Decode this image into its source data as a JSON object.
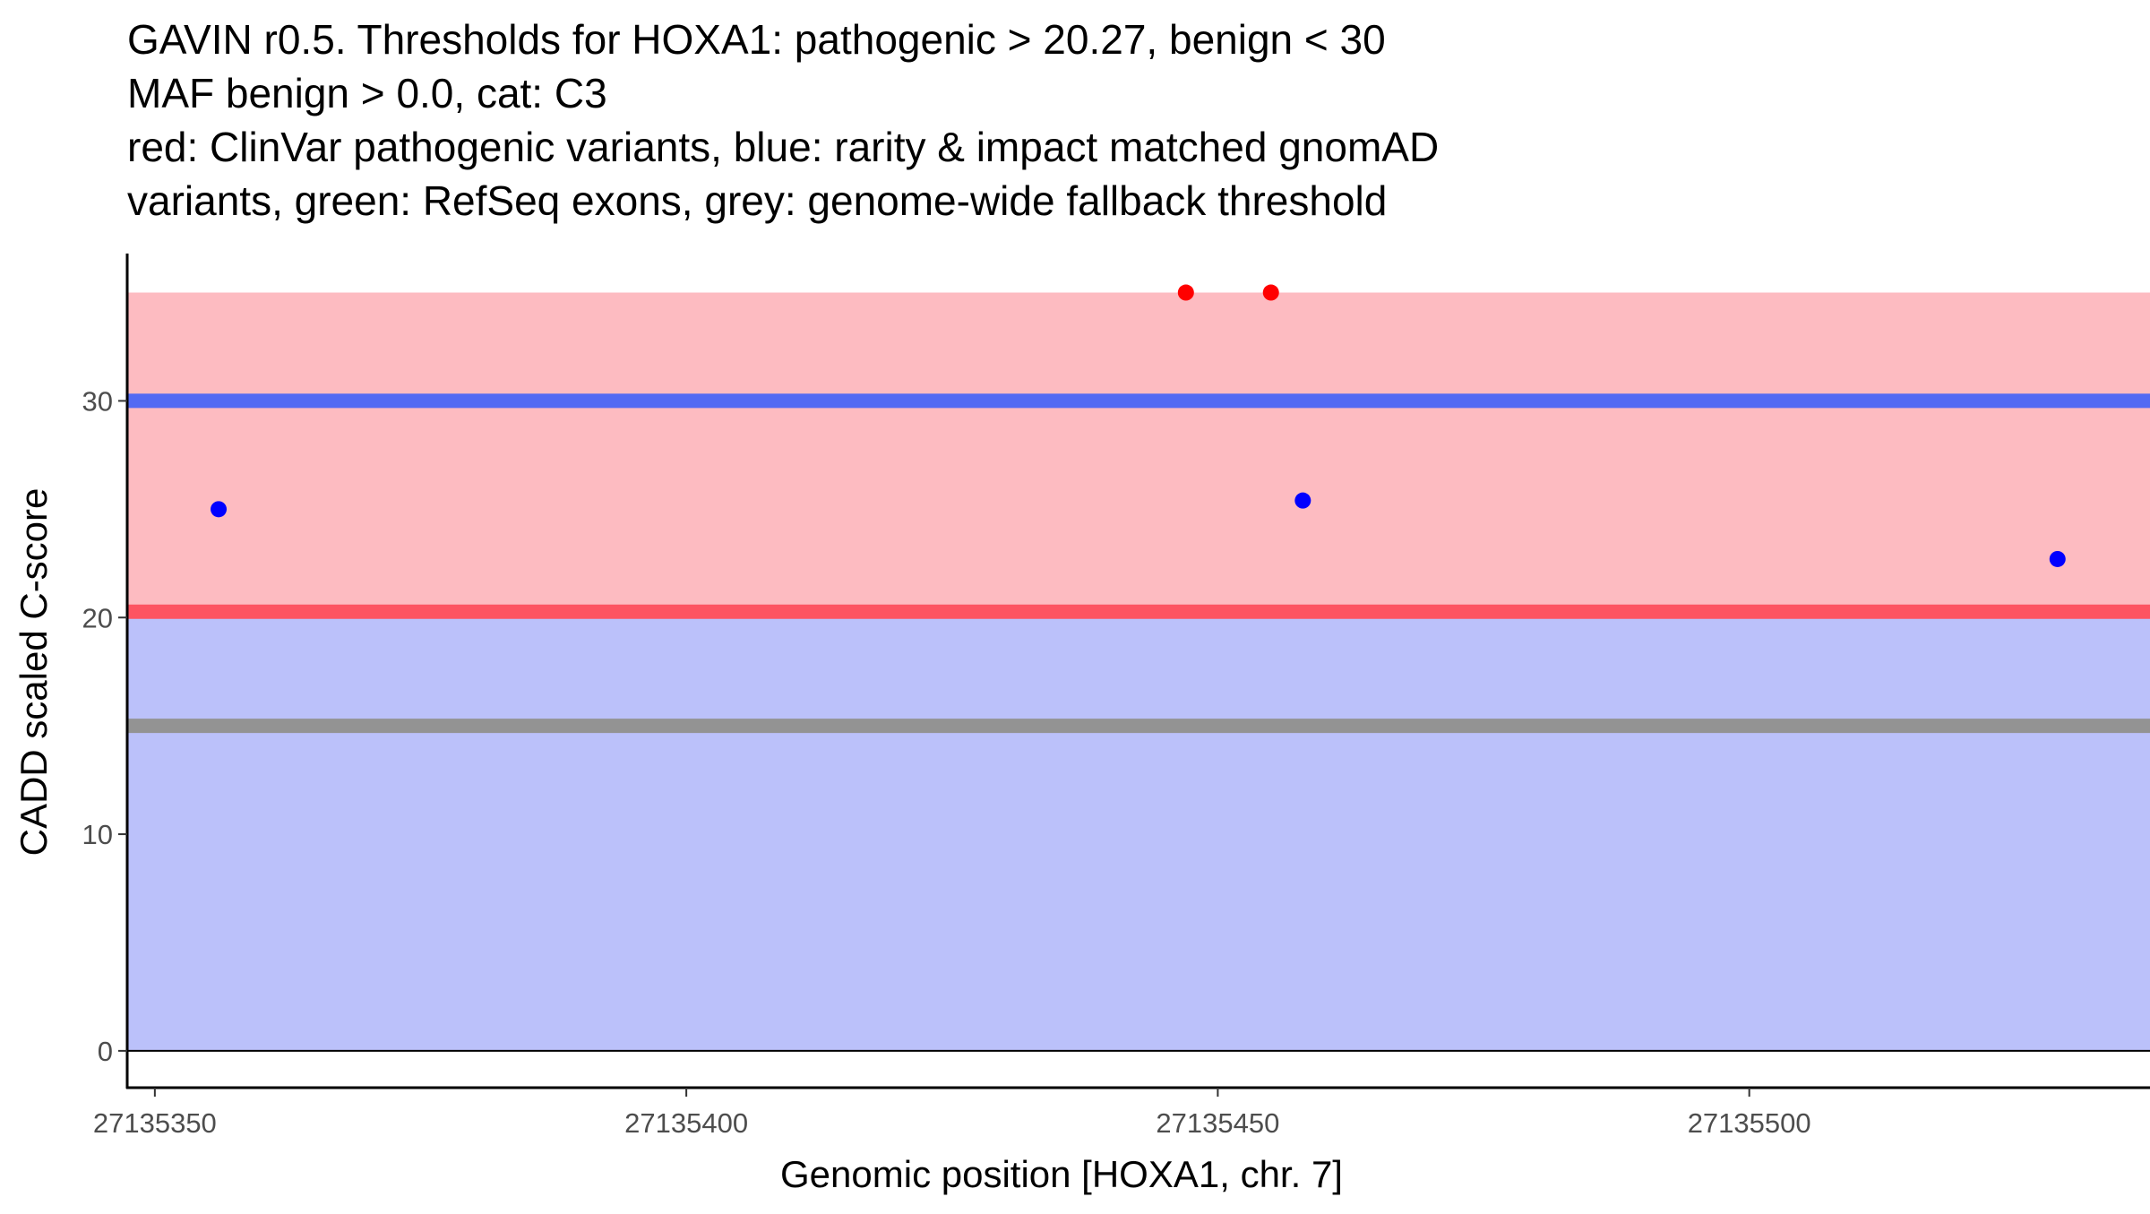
{
  "chart_data": {
    "type": "scatter",
    "title_lines": [
      "GAVIN r0.5. Thresholds for HOXA1: pathogenic > 20.27, benign < 30",
      "MAF benign > 0.0, cat: C3",
      "red: ClinVar pathogenic variants, blue: rarity & impact matched gnomAD",
      "variants, green: RefSeq exons, grey: genome-wide fallback threshold"
    ],
    "xlabel": "Genomic position [HOXA1, chr. 7]",
    "ylabel": "CADD scaled C-score",
    "xlim": [
      27135347.4,
      27135537.7
    ],
    "ylim": [
      -1.7,
      36.8
    ],
    "x_ticks": [
      27135350,
      27135400,
      27135450,
      27135500
    ],
    "y_ticks": [
      0,
      10,
      20,
      30
    ],
    "bands": [
      {
        "name": "benign-region",
        "from": 0,
        "to": 20.27,
        "color": "#bbc1fa"
      },
      {
        "name": "pathogenic-region",
        "from": 20.27,
        "to": 35,
        "color": "#fdbbc1"
      }
    ],
    "hlines": [
      {
        "name": "benign-threshold",
        "y": 30,
        "color": "#536af3"
      },
      {
        "name": "pathogenic-threshold",
        "y": 20.27,
        "color": "#fd5462"
      },
      {
        "name": "fallback-threshold",
        "y": 15,
        "color": "#939393"
      }
    ],
    "series": [
      {
        "name": "ClinVar pathogenic",
        "color": "#ff0000",
        "points": [
          [
            27135447,
            35
          ],
          [
            27135455,
            35
          ]
        ]
      },
      {
        "name": "gnomAD matched",
        "color": "#0000ff",
        "points": [
          [
            27135356,
            25
          ],
          [
            27135458,
            25.4
          ],
          [
            27135529,
            22.7
          ]
        ]
      }
    ]
  }
}
